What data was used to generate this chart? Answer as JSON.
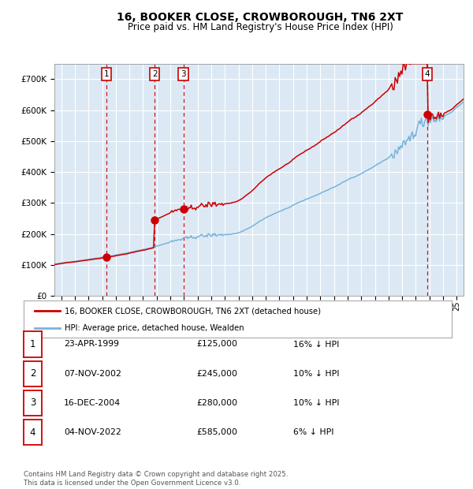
{
  "title": "16, BOOKER CLOSE, CROWBOROUGH, TN6 2XT",
  "subtitle": "Price paid vs. HM Land Registry's House Price Index (HPI)",
  "legend_line1": "16, BOOKER CLOSE, CROWBOROUGH, TN6 2XT (detached house)",
  "legend_line2": "HPI: Average price, detached house, Wealden",
  "footer": "Contains HM Land Registry data © Crown copyright and database right 2025.\nThis data is licensed under the Open Government Licence v3.0.",
  "transactions": [
    {
      "num": 1,
      "date": "23-APR-1999",
      "price": 125000,
      "pct": "16%",
      "dir": "↓"
    },
    {
      "num": 2,
      "date": "07-NOV-2002",
      "price": 245000,
      "pct": "10%",
      "dir": "↓"
    },
    {
      "num": 3,
      "date": "16-DEC-2004",
      "price": 280000,
      "pct": "10%",
      "dir": "↓"
    },
    {
      "num": 4,
      "date": "04-NOV-2022",
      "price": 585000,
      "pct": "6%",
      "dir": "↓"
    }
  ],
  "transaction_dates_decimal": [
    1999.31,
    2002.85,
    2004.96,
    2022.84
  ],
  "transaction_prices": [
    125000,
    245000,
    280000,
    585000
  ],
  "hpi_color": "#7ab3d8",
  "price_color": "#cc0000",
  "background_color": "#ffffff",
  "plot_bg_color": "#dce9f5",
  "grid_color": "#ffffff",
  "vline_color": "#cc0000",
  "marker_color": "#cc0000",
  "xmin": 1995.5,
  "xmax": 2025.5,
  "ymin": 0,
  "ymax": 750000,
  "yticks": [
    0,
    100000,
    200000,
    300000,
    400000,
    500000,
    600000,
    700000
  ]
}
